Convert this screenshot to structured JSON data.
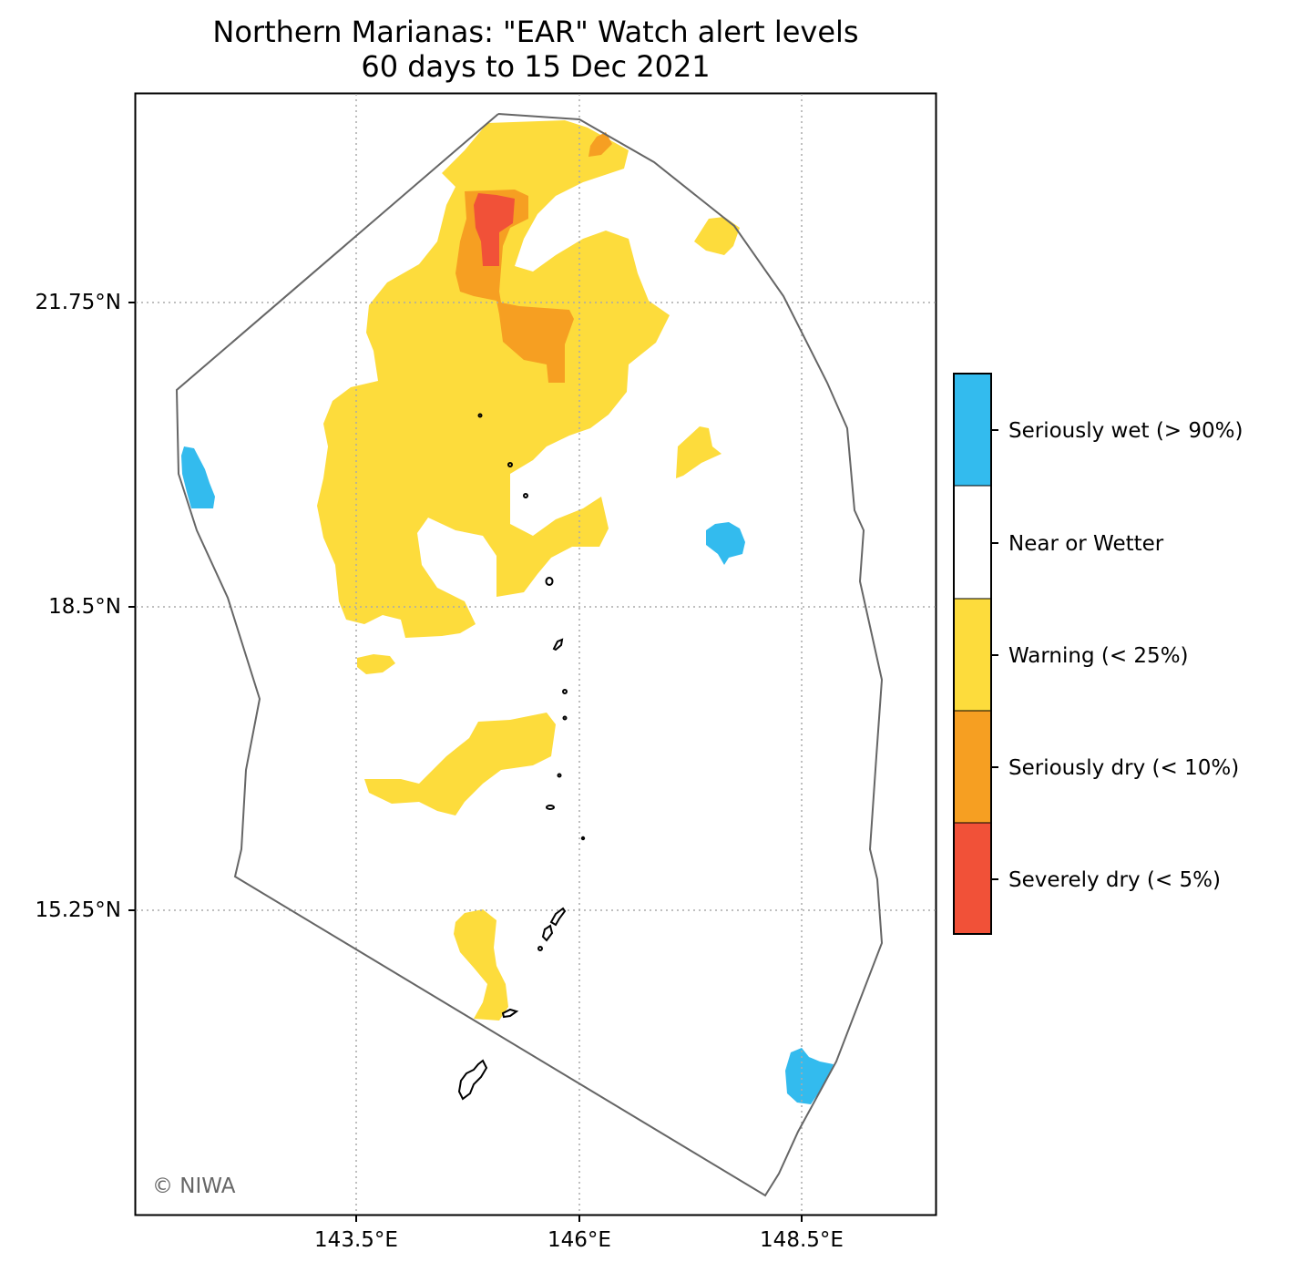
{
  "title": {
    "line1": "Northern Marianas: \"EAR\" Watch alert levels",
    "line2": "60 days to 15 Dec 2021"
  },
  "map": {
    "region": "Northern Marianas",
    "lat_ticks": [
      "21.75°N",
      "18.5°N",
      "15.25°N"
    ],
    "lon_ticks": [
      "143.5°E",
      "146°E",
      "148.5°E"
    ],
    "gridlines": "dotted",
    "credit": "© NIWA"
  },
  "legend": {
    "placement": "right",
    "items": [
      {
        "label": "Seriously wet (> 90%)",
        "color": "#33bbee"
      },
      {
        "label": "Near or Wetter",
        "color": "#ffffff"
      },
      {
        "label": "Warning (< 25%)",
        "color": "#fddc3c"
      },
      {
        "label": "Seriously dry (< 10%)",
        "color": "#f69f22"
      },
      {
        "label": "Severely dry (< 5%)",
        "color": "#f15138"
      }
    ]
  },
  "colors": {
    "boundary": "#666666",
    "grid": "#aaaaaa",
    "island_outline": "#000000"
  }
}
